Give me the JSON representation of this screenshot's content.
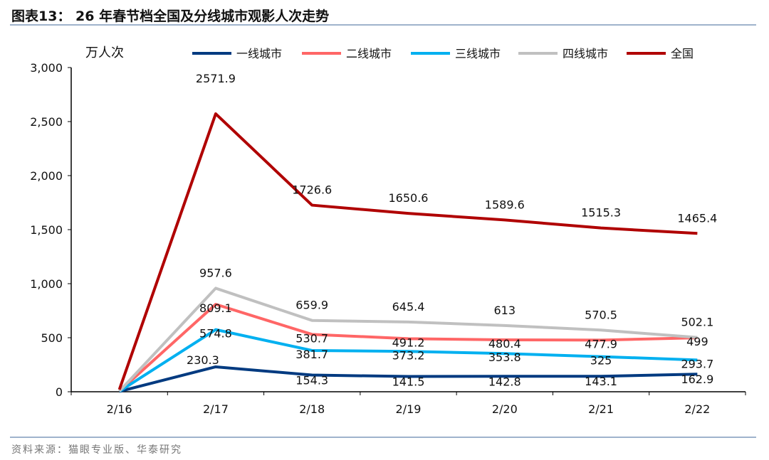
{
  "title": "图表13： 26 年春节档全国及分线城市观影人次走势",
  "source": "资料来源：猫眼专业版、华泰研究",
  "chart_data": {
    "type": "line",
    "ylabel": "万人次",
    "ylim": [
      0,
      3000
    ],
    "yticks": [
      0,
      500,
      1000,
      1500,
      2000,
      2500,
      3000
    ],
    "ytick_labels": [
      "0",
      "500",
      "1,000",
      "1,500",
      "2,000",
      "2,500",
      "3,000"
    ],
    "categories": [
      "2/16",
      "2/17",
      "2/18",
      "2/19",
      "2/20",
      "2/21",
      "2/22"
    ],
    "legend_position": "top",
    "grid": false,
    "series": [
      {
        "name": "一线城市",
        "color": "#003a80",
        "values": [
          3,
          230.3,
          154.3,
          141.5,
          142.8,
          143.1,
          162.9
        ],
        "labels": [
          "",
          "230.3",
          "154.3",
          "141.5",
          "142.8",
          "143.1",
          "162.9"
        ]
      },
      {
        "name": "二线城市",
        "color": "#ff6666",
        "values": [
          5,
          809.1,
          530.7,
          491.2,
          480.4,
          477.9,
          499
        ],
        "labels": [
          "",
          "809.1",
          "530.7",
          "491.2",
          "480.4",
          "477.9",
          "499"
        ]
      },
      {
        "name": "三线城市",
        "color": "#00b0f0",
        "values": [
          4,
          574.8,
          381.7,
          373.2,
          353.8,
          325,
          293.7
        ],
        "labels": [
          "",
          "574.8",
          "381.7",
          "373.2",
          "353.8",
          "325",
          "293.7"
        ]
      },
      {
        "name": "四线城市",
        "color": "#c0c0c0",
        "values": [
          5,
          957.6,
          659.9,
          645.4,
          613,
          570.5,
          502.1
        ],
        "labels": [
          "",
          "957.6",
          "659.9",
          "645.4",
          "613",
          "570.5",
          "502.1"
        ]
      },
      {
        "name": "全国",
        "color": "#b00000",
        "values": [
          20,
          2571.9,
          1726.6,
          1650.6,
          1589.6,
          1515.3,
          1465.4
        ],
        "labels": [
          "",
          "2571.9",
          "1726.6",
          "1650.6",
          "1589.6",
          "1515.3",
          "1465.4"
        ]
      }
    ]
  }
}
